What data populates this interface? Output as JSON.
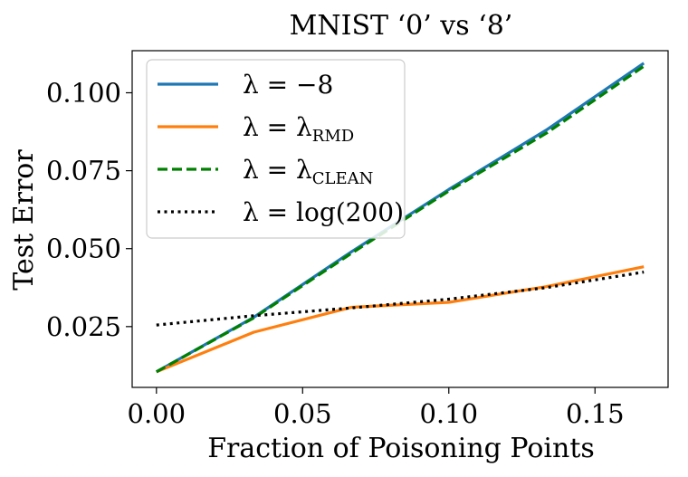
{
  "chart_data": {
    "type": "line",
    "title": "MNIST ‘0’ vs ‘8’",
    "xlabel": "Fraction of Poisoning Points",
    "ylabel": "Test Error",
    "xlim": [
      -0.0083,
      0.175
    ],
    "ylim": [
      0.0055,
      0.1135
    ],
    "xticks": [
      0.0,
      0.05,
      0.1,
      0.15
    ],
    "xtick_labels": [
      "0.00",
      "0.05",
      "0.10",
      "0.15"
    ],
    "yticks": [
      0.025,
      0.05,
      0.075,
      0.1
    ],
    "ytick_labels": [
      "0.025",
      "0.050",
      "0.075",
      "0.100"
    ],
    "legend_position": "top-left",
    "series": [
      {
        "name": "λ = −8",
        "legend": {
          "main": "λ = −8",
          "sub": ""
        },
        "color": "#1f77b4",
        "style": "solid",
        "x": [
          0.0,
          0.0333,
          0.0667,
          0.1,
          0.1333,
          0.1667
        ],
        "y": [
          0.0105,
          0.028,
          0.049,
          0.069,
          0.088,
          0.1095
        ]
      },
      {
        "name": "λ = λRMD",
        "legend": {
          "main": "λ = λ",
          "sub": "RMD"
        },
        "color": "#ff7f0e",
        "style": "solid",
        "x": [
          0.0,
          0.0333,
          0.0667,
          0.1,
          0.1333,
          0.1667
        ],
        "y": [
          0.0105,
          0.0232,
          0.0312,
          0.0328,
          0.0378,
          0.0442
        ]
      },
      {
        "name": "λ = λCLEAN",
        "legend": {
          "main": "λ = λ",
          "sub": "CLEAN"
        },
        "color": "#008000",
        "style": "dashed",
        "x": [
          0.0,
          0.0333,
          0.0667,
          0.1,
          0.1333,
          0.1667
        ],
        "y": [
          0.0105,
          0.0278,
          0.0485,
          0.0685,
          0.087,
          0.1085
        ]
      },
      {
        "name": "λ = log(200)",
        "legend": {
          "main": "λ = log(200)",
          "sub": ""
        },
        "color": "#000000",
        "style": "dotted",
        "x": [
          0.0,
          0.0333,
          0.0667,
          0.1,
          0.1333,
          0.1667
        ],
        "y": [
          0.0255,
          0.0285,
          0.031,
          0.0338,
          0.0375,
          0.0425
        ]
      }
    ]
  }
}
